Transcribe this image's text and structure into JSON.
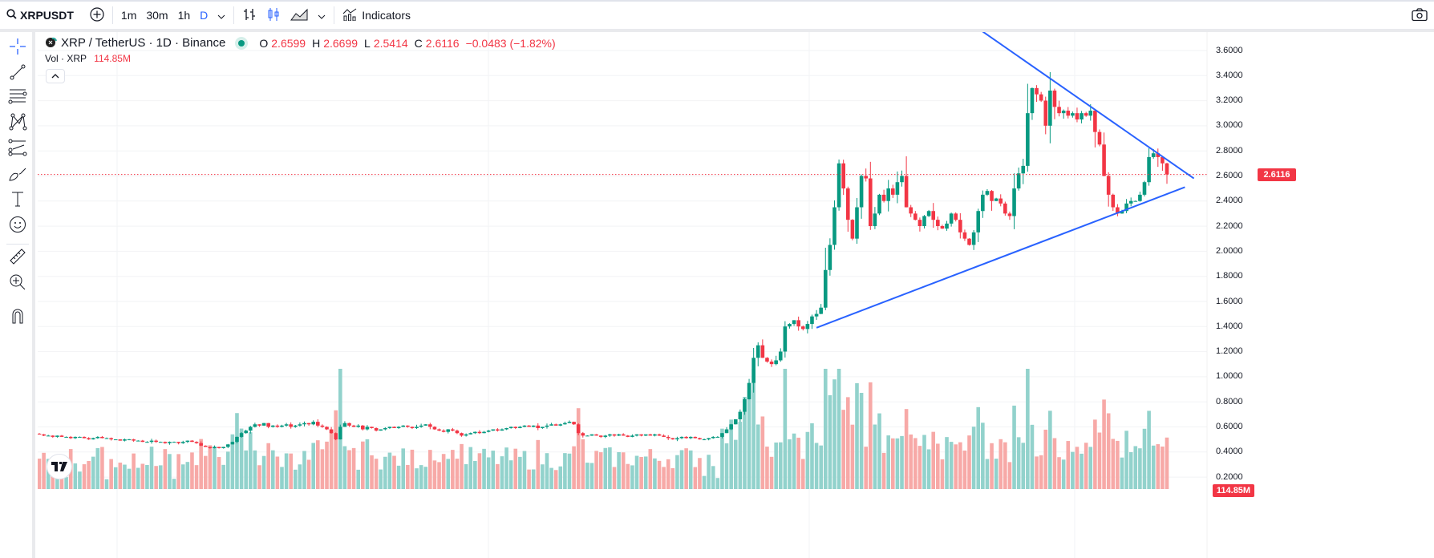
{
  "toolbar": {
    "symbol": "XRPUSDT",
    "intervals": [
      "1m",
      "30m",
      "1h",
      "D"
    ],
    "active_interval": "D",
    "indicators_label": "Indicators"
  },
  "legend": {
    "title": "XRP / TetherUS · 1D · Binance",
    "o_label": "O",
    "o": "2.6599",
    "h_label": "H",
    "h": "2.6699",
    "l_label": "L",
    "l": "2.5414",
    "c_label": "C",
    "c": "2.6116",
    "change": "−0.0483 (−1.82%)"
  },
  "volume_legend": {
    "label": "Vol · XRP",
    "value": "114.85M"
  },
  "price_axis": {
    "labels": [
      "3.6000",
      "3.4000",
      "3.2000",
      "3.0000",
      "2.8000",
      "2.6000",
      "2.4000",
      "2.2000",
      "2.0000",
      "1.8000",
      "1.6000",
      "1.4000",
      "1.2000",
      "1.0000",
      "0.8000",
      "0.6000",
      "0.4000",
      "0.2000"
    ],
    "last_price": "2.6116",
    "last_volume": "114.85M"
  },
  "colors": {
    "up": "#089981",
    "down": "#f23645",
    "up_volume": "#92d2cc",
    "down_volume": "#f7a9a7",
    "trendline": "#2962ff",
    "accent": "#2962ff"
  },
  "logo_text": "TV",
  "left_tools": [
    "crosshair-icon",
    "trendline-icon",
    "fib-retracement-icon",
    "pattern-icon",
    "projection-icon",
    "brush-icon",
    "text-icon",
    "emoji-icon",
    "ruler-icon",
    "zoom-in-icon",
    "magnet-icon"
  ],
  "chart_data": {
    "type": "candlestick",
    "ylim": [
      0.2,
      3.6
    ],
    "closes": [
      0.54,
      0.53,
      0.53,
      0.52,
      0.53,
      0.52,
      0.52,
      0.51,
      0.52,
      0.52,
      0.51,
      0.5,
      0.51,
      0.52,
      0.51,
      0.51,
      0.5,
      0.5,
      0.49,
      0.5,
      0.5,
      0.49,
      0.49,
      0.48,
      0.48,
      0.49,
      0.48,
      0.48,
      0.47,
      0.48,
      0.48,
      0.47,
      0.48,
      0.49,
      0.48,
      0.47,
      0.45,
      0.44,
      0.43,
      0.44,
      0.43,
      0.44,
      0.46,
      0.48,
      0.52,
      0.55,
      0.57,
      0.6,
      0.62,
      0.61,
      0.63,
      0.6,
      0.61,
      0.6,
      0.61,
      0.62,
      0.6,
      0.61,
      0.62,
      0.63,
      0.62,
      0.64,
      0.61,
      0.6,
      0.58,
      0.55,
      0.5,
      0.6,
      0.63,
      0.61,
      0.6,
      0.61,
      0.58,
      0.6,
      0.59,
      0.57,
      0.58,
      0.59,
      0.6,
      0.59,
      0.6,
      0.61,
      0.6,
      0.59,
      0.6,
      0.61,
      0.62,
      0.6,
      0.58,
      0.57,
      0.56,
      0.58,
      0.57,
      0.55,
      0.53,
      0.54,
      0.55,
      0.56,
      0.55,
      0.56,
      0.57,
      0.58,
      0.57,
      0.58,
      0.59,
      0.6,
      0.59,
      0.6,
      0.61,
      0.6,
      0.61,
      0.59,
      0.6,
      0.61,
      0.62,
      0.61,
      0.62,
      0.63,
      0.64,
      0.62,
      0.55,
      0.53,
      0.53,
      0.54,
      0.53,
      0.52,
      0.53,
      0.54,
      0.53,
      0.54,
      0.53,
      0.52,
      0.53,
      0.54,
      0.53,
      0.54,
      0.53,
      0.54,
      0.53,
      0.52,
      0.51,
      0.5,
      0.51,
      0.52,
      0.51,
      0.52,
      0.51,
      0.5,
      0.5,
      0.51,
      0.52,
      0.52,
      0.55,
      0.58,
      0.62,
      0.66,
      0.72,
      0.82,
      0.95,
      1.15,
      1.25,
      1.15,
      1.12,
      1.1,
      1.13,
      1.2,
      1.4,
      1.42,
      1.45,
      1.4,
      1.38,
      1.42,
      1.48,
      1.5,
      1.55,
      1.85,
      2.05,
      2.35,
      2.7,
      2.5,
      2.25,
      2.1,
      2.35,
      2.6,
      2.58,
      2.2,
      2.3,
      2.45,
      2.4,
      2.5,
      2.45,
      2.55,
      2.6,
      2.35,
      2.3,
      2.25,
      2.2,
      2.28,
      2.32,
      2.25,
      2.2,
      2.18,
      2.22,
      2.3,
      2.25,
      2.15,
      2.1,
      2.05,
      2.15,
      2.32,
      2.45,
      2.48,
      2.4,
      2.42,
      2.38,
      2.3,
      2.28,
      2.5,
      2.62,
      2.68,
      3.1,
      3.3,
      3.25,
      3.2,
      3.0,
      3.28,
      3.15,
      3.1,
      3.12,
      3.08,
      3.1,
      3.05,
      3.1,
      3.08,
      3.12,
      2.95,
      2.85,
      2.6,
      2.45,
      2.35,
      2.3,
      2.32,
      2.38,
      2.4,
      2.4,
      2.45,
      2.55,
      2.75,
      2.78,
      2.75,
      2.7,
      2.6116
    ],
    "trendlines": [
      {
        "from": {
          "bar": 210,
          "price": 3.75
        },
        "to": {
          "bar": 257,
          "price": 2.58
        }
      },
      {
        "from": {
          "bar": 173,
          "price": 1.39
        },
        "to": {
          "bar": 255,
          "price": 2.51
        }
      }
    ]
  }
}
